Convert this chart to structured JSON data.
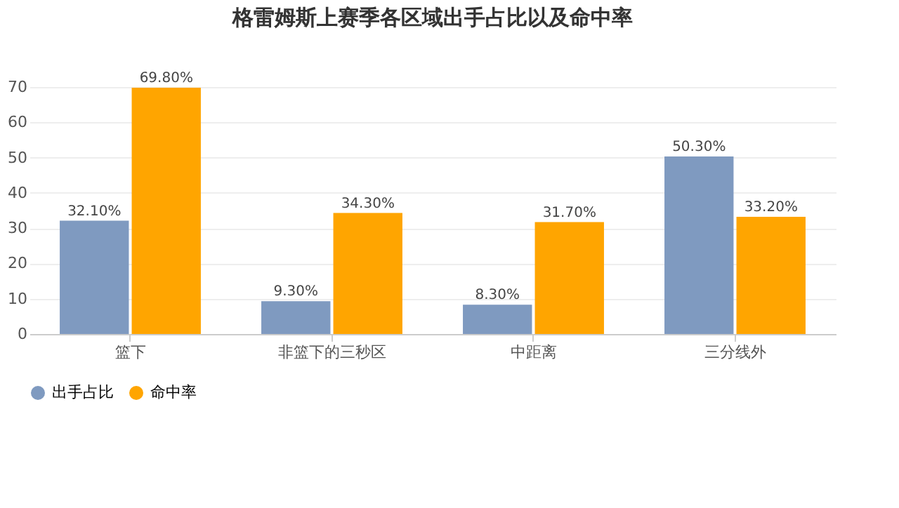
{
  "chart_data": {
    "type": "bar",
    "title": "格雷姆斯上赛季各区域出手占比以及命中率",
    "categories": [
      "篮下",
      "非篮下的三秒区",
      "中距离",
      "三分线外"
    ],
    "series": [
      {
        "name": "出手占比",
        "color": "#7f9ac0",
        "values": [
          32.1,
          9.3,
          8.3,
          50.3
        ],
        "value_labels": [
          "32.10%",
          "9.30%",
          "8.30%",
          "50.30%"
        ]
      },
      {
        "name": "命中率",
        "color": "#ffa500",
        "values": [
          69.8,
          34.3,
          31.7,
          33.2
        ],
        "value_labels": [
          "69.80%",
          "34.30%",
          "31.70%",
          "33.20%"
        ]
      }
    ],
    "ylim": [
      0,
      70
    ],
    "yticks": [
      0,
      10,
      20,
      30,
      40,
      50,
      60,
      70
    ],
    "grid": "y",
    "legend": "bottom"
  }
}
